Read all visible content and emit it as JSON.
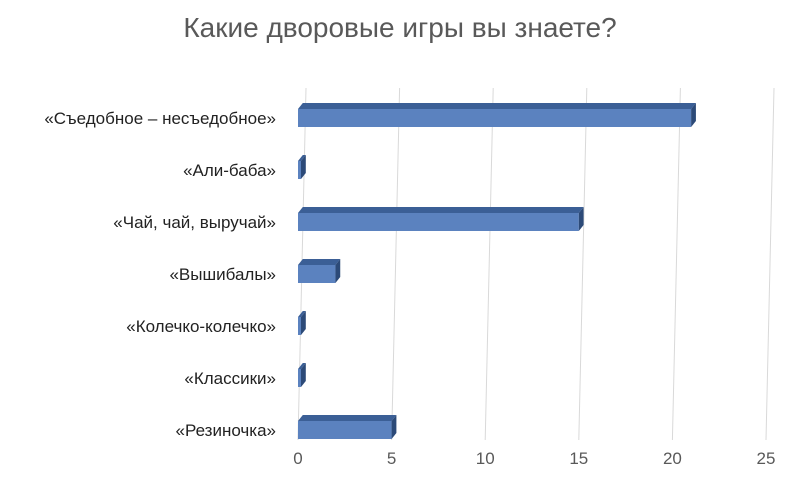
{
  "chart_data": {
    "type": "bar",
    "orientation": "horizontal",
    "style": "3d",
    "title": "Какие дворовые игры вы знаете?",
    "categories": [
      "«Съедобное – несъедобное»",
      "«Али-баба»",
      "«Чай, чай, выручай»",
      "«Вышибалы»",
      "«Колечко-колечко»",
      "«Классики»",
      "«Резиночка»"
    ],
    "values": [
      21,
      0,
      15,
      2,
      0,
      0,
      5
    ],
    "xlim": [
      0,
      25
    ],
    "ticks": [
      "0",
      "5",
      "10",
      "15",
      "20",
      "25"
    ],
    "grid": true,
    "legend": "none",
    "colors": {
      "bar_front": "#5b82bf",
      "bar_top": "#3b5f96",
      "bar_side": "#2c4a78",
      "grid": "#d9d9d9",
      "text": "#595959"
    }
  }
}
